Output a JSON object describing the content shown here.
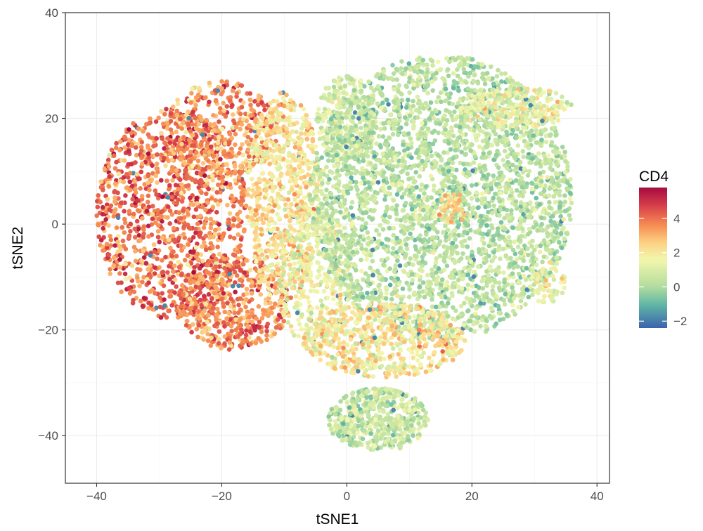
{
  "chart_data": {
    "type": "scatter",
    "title": "",
    "xlabel": "tSNE1",
    "ylabel": "tSNE2",
    "xlim": [
      -45,
      42
    ],
    "ylim": [
      -49,
      40
    ],
    "x_ticks": [
      -40,
      -20,
      0,
      20,
      40
    ],
    "y_ticks": [
      -40,
      -20,
      0,
      20,
      40
    ],
    "x_tick_labels": [
      "−40",
      "−20",
      "0",
      "20",
      "40"
    ],
    "y_tick_labels": [
      "−40",
      "−20",
      "0",
      "20",
      "40"
    ],
    "grid": true,
    "color_variable": "CD4",
    "color_range": [
      -2.4,
      5.8
    ],
    "colorbar_ticks": [
      -2,
      0,
      2,
      4
    ],
    "colorbar_tick_labels": [
      "−2",
      "0",
      "2",
      "4"
    ],
    "legend_position": "right",
    "colors": {
      "palette": [
        "#3a63ad",
        "#62b8a6",
        "#b2dc9e",
        "#f2f7ad",
        "#fdd083",
        "#f68d52",
        "#d53b4a",
        "#a50b40"
      ],
      "palette_stops": [
        -2.4,
        -1.0,
        0.0,
        1.6,
        2.6,
        3.6,
        4.8,
        5.8
      ]
    },
    "regions": [
      {
        "cx": -28,
        "cy": 2,
        "rx": 12,
        "ry": 20,
        "n": 1200,
        "value_mean": 3.9,
        "value_sd": 0.8
      },
      {
        "cx": -18,
        "cy": -15,
        "rx": 9,
        "ry": 9,
        "n": 500,
        "value_mean": 3.6,
        "value_sd": 0.8
      },
      {
        "cx": -20,
        "cy": 18,
        "rx": 9,
        "ry": 9,
        "n": 400,
        "value_mean": 3.4,
        "value_sd": 0.8
      },
      {
        "cx": -10,
        "cy": 5,
        "rx": 6,
        "ry": 20,
        "n": 700,
        "value_mean": 2.2,
        "value_sd": 0.7
      },
      {
        "cx": -5,
        "cy": -10,
        "rx": 6,
        "ry": 14,
        "n": 400,
        "value_mean": 1.5,
        "value_sd": 0.7
      },
      {
        "cx": 0,
        "cy": 20,
        "rx": 5,
        "ry": 8,
        "n": 300,
        "value_mean": 0.8,
        "value_sd": 0.6
      },
      {
        "cx": 15,
        "cy": 5,
        "rx": 21,
        "ry": 27,
        "n": 3200,
        "value_mean": 0.3,
        "value_sd": 0.6
      },
      {
        "cx": 6,
        "cy": -22,
        "rx": 13,
        "ry": 7,
        "n": 600,
        "value_mean": 2.0,
        "value_sd": 0.8
      },
      {
        "cx": 5,
        "cy": -37,
        "rx": 8,
        "ry": 6,
        "n": 500,
        "value_mean": 0.6,
        "value_sd": 0.7
      },
      {
        "cx": 27,
        "cy": 22,
        "rx": 9,
        "ry": 4,
        "n": 250,
        "value_mean": 1.4,
        "value_sd": 0.6
      },
      {
        "cx": 17,
        "cy": 3,
        "rx": 2.5,
        "ry": 3,
        "n": 40,
        "value_mean": 2.6,
        "value_sd": 0.6
      },
      {
        "cx": 32,
        "cy": -11,
        "rx": 3,
        "ry": 4,
        "n": 60,
        "value_mean": 1.4,
        "value_sd": 0.6
      }
    ]
  }
}
